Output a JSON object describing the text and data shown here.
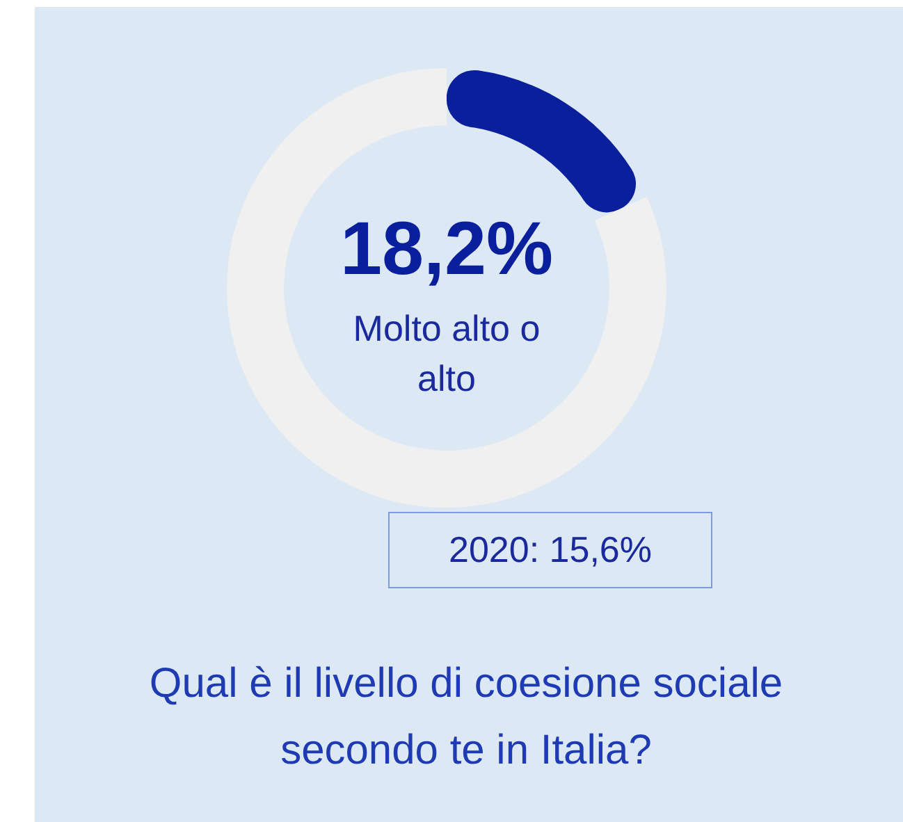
{
  "chart_data": {
    "type": "donut",
    "title": "Qual è il livello di coesione sociale secondo te in Italia?",
    "categories": [
      "Molto alto o alto",
      null
    ],
    "values": [
      18.2,
      81.8
    ],
    "colors": [
      "#0a1f9c",
      "#f0f0f0"
    ],
    "value_labels": [
      "18,2%",
      null
    ],
    "annotations": [
      "2020: 15,6%"
    ]
  }
}
